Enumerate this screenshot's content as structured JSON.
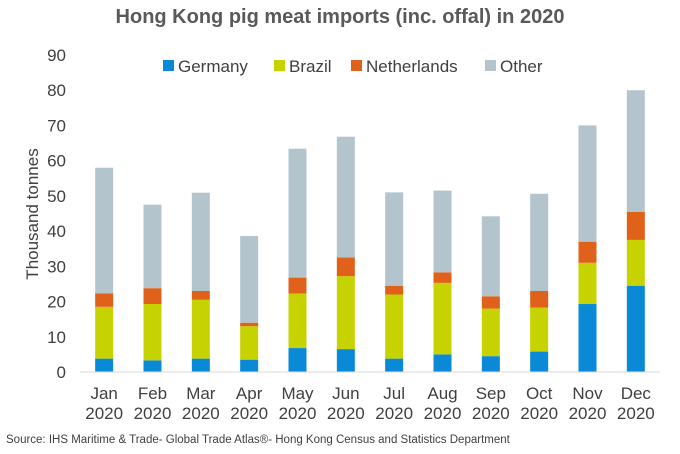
{
  "chart_data": {
    "type": "bar",
    "stacked": true,
    "title": "Hong Kong pig meat imports  (inc. offal) in 2020",
    "ylabel": "Thousand tonnes",
    "xlabel": "",
    "ylim": [
      0,
      90
    ],
    "yticks": [
      0,
      10,
      20,
      30,
      40,
      50,
      60,
      70,
      80,
      90
    ],
    "categories": [
      [
        "Jan",
        "2020"
      ],
      [
        "Feb",
        "2020"
      ],
      [
        "Mar",
        "2020"
      ],
      [
        "Apr",
        "2020"
      ],
      [
        "May",
        "2020"
      ],
      [
        "Jun",
        "2020"
      ],
      [
        "Jul",
        "2020"
      ],
      [
        "Aug",
        "2020"
      ],
      [
        "Sep",
        "2020"
      ],
      [
        "Oct",
        "2020"
      ],
      [
        "Nov",
        "2020"
      ],
      [
        "Dec",
        "2020"
      ]
    ],
    "legend_position": "top",
    "grid": false,
    "series": [
      {
        "name": "Germany",
        "color": "#0a8ad6",
        "values": [
          3.8,
          3.3,
          3.8,
          3.5,
          6.8,
          6.5,
          3.8,
          5.0,
          4.5,
          5.8,
          19.3,
          24.5
        ]
      },
      {
        "name": "Brazil",
        "color": "#c6d300",
        "values": [
          14.7,
          16.0,
          16.7,
          9.5,
          15.5,
          20.7,
          18.2,
          20.3,
          13.5,
          12.5,
          11.7,
          13.0
        ]
      },
      {
        "name": "Netherlands",
        "color": "#e0611a",
        "values": [
          3.8,
          4.5,
          2.5,
          1.0,
          4.5,
          5.3,
          2.5,
          3.0,
          3.5,
          4.7,
          6.0,
          8.0
        ]
      },
      {
        "name": "Other",
        "color": "#b3c4cd",
        "values": [
          35.7,
          23.7,
          27.9,
          24.6,
          36.6,
          34.3,
          26.5,
          23.2,
          22.7,
          27.6,
          33.0,
          34.5
        ]
      }
    ]
  },
  "footer": {
    "source": "Source: IHS Maritime & Trade- Global Trade Atlas®- Hong Kong Census and Statistics Department"
  }
}
